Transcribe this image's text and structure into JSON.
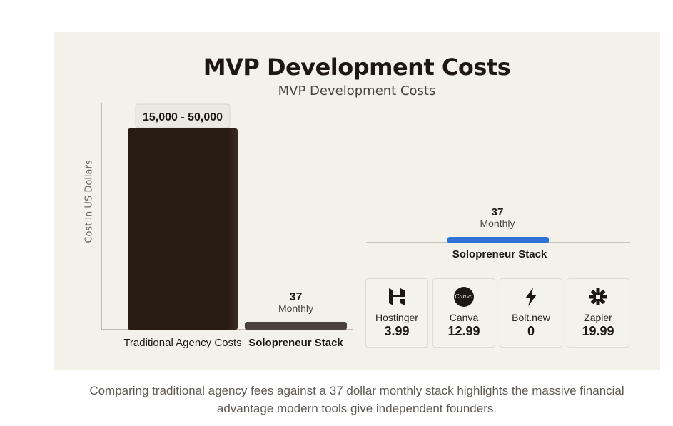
{
  "chart_data": {
    "type": "bar",
    "title": "MVP Development Costs",
    "subtitle": "MVP Development Costs",
    "ylabel": "Cost in US Dollars",
    "categories": [
      "Traditional Agency Costs",
      "Solopreneur Stack"
    ],
    "values": [
      50000,
      37
    ],
    "value_labels": [
      "15,000 - 50,000",
      "37"
    ],
    "value_sublabels": [
      "",
      "Monthly"
    ],
    "colors": [
      "#281b14",
      "#4a413b"
    ],
    "grid": false,
    "inset": {
      "category": "Solopreneur Stack",
      "value_label": "37",
      "value_sublabel": "Monthly",
      "bar_color": "#2f73d9"
    },
    "breakdown": [
      {
        "tool": "Hostinger",
        "price": "3.99",
        "icon": "hostinger-icon"
      },
      {
        "tool": "Canva",
        "price": "12.99",
        "icon": "canva-icon",
        "icon_text": "Canva"
      },
      {
        "tool": "Bolt.new",
        "price": "0",
        "icon": "lightning-bolt-icon"
      },
      {
        "tool": "Zapier",
        "price": "19.99",
        "icon": "zapier-asterisk-icon"
      }
    ]
  },
  "caption": "Comparing traditional agency fees against a 37 dollar monthly stack highlights the massive financial advantage modern tools give independent founders."
}
